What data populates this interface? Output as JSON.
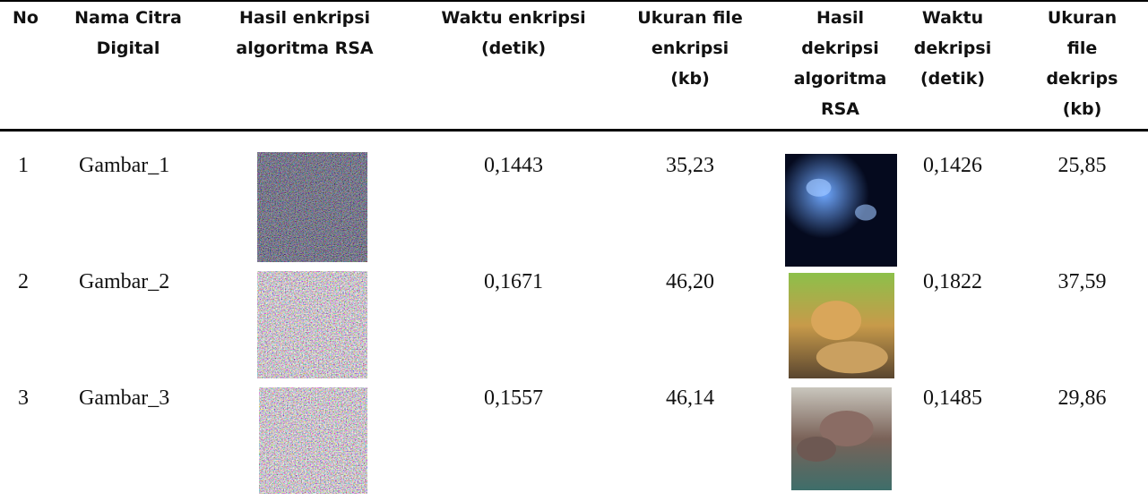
{
  "table": {
    "header": [
      [
        "No"
      ],
      [
        "Nama Citra",
        "Digital"
      ],
      [
        "Hasil enkripsi",
        "algoritma RSA"
      ],
      [
        "Waktu enkripsi",
        "(detik)"
      ],
      [
        "Ukuran file",
        "enkripsi",
        "(kb)"
      ],
      [
        "Hasil",
        "dekripsi",
        "algoritma",
        "RSA"
      ],
      [
        "Waktu",
        "dekripsi",
        "(detik)"
      ],
      [
        "Ukuran",
        "file",
        "dekrips",
        "(kb)"
      ]
    ],
    "rows": [
      {
        "no": "1",
        "name": "Gambar_1",
        "enc_time": "0,1443",
        "enc_size": "35,23",
        "dec_time": "0,1426",
        "dec_size": "25,85"
      },
      {
        "no": "2",
        "name": "Gambar_2",
        "enc_time": "0,1671",
        "enc_size": "46,20",
        "dec_time": "0,1822",
        "dec_size": "37,59"
      },
      {
        "no": "3",
        "name": "Gambar_3",
        "enc_time": "0,1557",
        "enc_size": "46,14",
        "dec_time": "0,1485",
        "dec_size": "29,86"
      }
    ]
  }
}
